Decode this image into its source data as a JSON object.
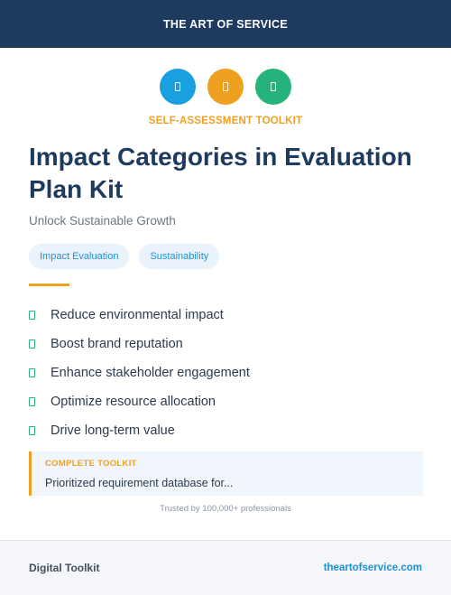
{
  "header": {
    "brand": "THE ART OF SERVICE",
    "background": "#1e3a5f"
  },
  "icons": [
    {
      "name": "toolkit-icon",
      "color": "#1a9fe0"
    },
    {
      "name": "toolkit-icon",
      "color": "#f0a020"
    },
    {
      "name": "toolkit-icon",
      "color": "#25b37a"
    }
  ],
  "eyebrow": {
    "text": "SELF-ASSESSMENT TOOLKIT",
    "color": "#f0a020"
  },
  "title": "Impact Categories in Evaluation Plan Kit",
  "subtitle": "Unlock Sustainable Growth",
  "tags": [
    "Impact Evaluation",
    "Sustainability"
  ],
  "benefits": [
    "Reduce environmental impact",
    "Boost brand reputation",
    "Enhance stakeholder engagement",
    "Optimize resource allocation",
    "Drive long-term value"
  ],
  "callout": {
    "label": "COMPLETE TOOLKIT",
    "text": "Prioritized requirement database for...",
    "label_color": "#f0a020"
  },
  "trusted": "Trusted by 100,000+ professionals",
  "footer": {
    "left": "Digital Toolkit",
    "right": "theartofservice.com"
  }
}
